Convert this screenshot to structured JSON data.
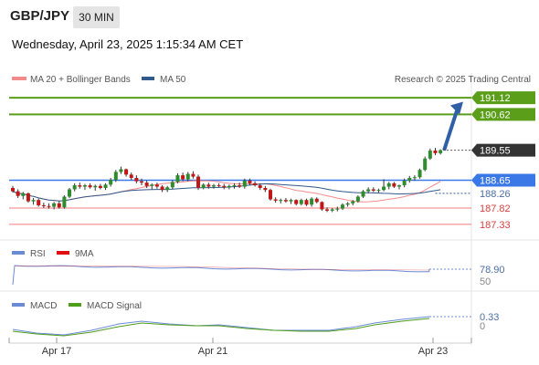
{
  "header": {
    "symbol": "GBP/JPY",
    "timeframe": "30 MIN",
    "datetime": "Wednesday, April 23, 2025 1:15:34 AM CET"
  },
  "legend": {
    "ma20_label": "MA 20 + Bollinger Bands",
    "ma50_label": "MA 50",
    "credit": "Research © 2025 Trading Central",
    "rsi_label": "RSI",
    "rsi_ma_label": "9MA",
    "macd_label": "MACD",
    "macd_signal_label": "MACD Signal"
  },
  "colors": {
    "green_level": "#5a9e1a",
    "blue_level": "#3b78e7",
    "red_level": "#f07b7b",
    "ma20": "#f48b8b",
    "ma50": "#2f5a8a",
    "arrow": "#2f5fa5",
    "current_price": "#333333",
    "rsi": "#6b8ad6",
    "rsi_ma": "#e01010",
    "macd": "#6b8ad6",
    "macd_signal": "#4f9e1a"
  },
  "chart_data": [
    {
      "type": "candlestick",
      "x_labels": [
        "Apr 17",
        "Apr 21",
        "Apr 23"
      ],
      "price_labels": [
        {
          "value": 191.12,
          "kind": "resistance",
          "text": "191.12"
        },
        {
          "value": 190.62,
          "kind": "resistance",
          "text": "190.62"
        },
        {
          "value": 189.55,
          "kind": "current",
          "text": "189.55"
        },
        {
          "value": 188.65,
          "kind": "pivot",
          "text": "188.65"
        },
        {
          "value": 188.26,
          "kind": "ma",
          "text": "188.26"
        },
        {
          "value": 187.82,
          "kind": "support",
          "text": "187.82"
        },
        {
          "value": 187.33,
          "kind": "support",
          "text": "187.33"
        }
      ],
      "ylim": [
        187.0,
        191.45
      ],
      "candles": [
        [
          188.42,
          188.48,
          188.28,
          188.32
        ],
        [
          188.32,
          188.38,
          188.12,
          188.18
        ],
        [
          188.18,
          188.3,
          188.08,
          188.26
        ],
        [
          188.26,
          188.28,
          187.98,
          188.02
        ],
        [
          188.02,
          188.12,
          187.92,
          188.06
        ],
        [
          188.06,
          188.1,
          187.86,
          187.9
        ],
        [
          187.9,
          187.98,
          187.82,
          187.88
        ],
        [
          187.88,
          187.96,
          187.8,
          187.86
        ],
        [
          187.86,
          188.0,
          187.78,
          187.96
        ],
        [
          187.96,
          188.02,
          187.8,
          187.84
        ],
        [
          187.84,
          188.2,
          187.8,
          188.16
        ],
        [
          188.16,
          188.42,
          188.12,
          188.38
        ],
        [
          188.38,
          188.56,
          188.32,
          188.5
        ],
        [
          188.5,
          188.58,
          188.4,
          188.46
        ],
        [
          188.46,
          188.54,
          188.36,
          188.5
        ],
        [
          188.5,
          188.56,
          188.4,
          188.44
        ],
        [
          188.44,
          188.52,
          188.34,
          188.48
        ],
        [
          188.48,
          188.54,
          188.38,
          188.42
        ],
        [
          188.42,
          188.56,
          188.36,
          188.52
        ],
        [
          188.52,
          188.72,
          188.46,
          188.66
        ],
        [
          188.66,
          188.96,
          188.6,
          188.9
        ],
        [
          188.9,
          189.06,
          188.84,
          188.98
        ],
        [
          188.98,
          189.0,
          188.76,
          188.82
        ],
        [
          188.82,
          188.88,
          188.66,
          188.72
        ],
        [
          188.72,
          188.8,
          188.56,
          188.62
        ],
        [
          188.62,
          188.7,
          188.5,
          188.58
        ],
        [
          188.58,
          188.64,
          188.42,
          188.48
        ],
        [
          188.48,
          188.56,
          188.38,
          188.52
        ],
        [
          188.52,
          188.58,
          188.4,
          188.46
        ],
        [
          188.46,
          188.5,
          188.3,
          188.36
        ],
        [
          188.36,
          188.48,
          188.3,
          188.44
        ],
        [
          188.44,
          188.66,
          188.38,
          188.6
        ],
        [
          188.6,
          188.86,
          188.56,
          188.8
        ],
        [
          188.8,
          188.88,
          188.62,
          188.68
        ],
        [
          188.68,
          188.9,
          188.62,
          188.84
        ],
        [
          188.84,
          188.92,
          188.7,
          188.76
        ],
        [
          188.76,
          188.82,
          188.36,
          188.42
        ],
        [
          188.42,
          188.56,
          188.38,
          188.52
        ],
        [
          188.52,
          188.58,
          188.4,
          188.46
        ],
        [
          188.46,
          188.54,
          188.4,
          188.5
        ],
        [
          188.5,
          188.56,
          188.44,
          188.48
        ],
        [
          188.48,
          188.54,
          188.38,
          188.44
        ],
        [
          188.44,
          188.52,
          188.38,
          188.48
        ],
        [
          188.48,
          188.56,
          188.4,
          188.5
        ],
        [
          188.5,
          188.58,
          188.42,
          188.46
        ],
        [
          188.46,
          188.7,
          188.4,
          188.64
        ],
        [
          188.64,
          188.7,
          188.5,
          188.56
        ],
        [
          188.56,
          188.62,
          188.46,
          188.5
        ],
        [
          188.5,
          188.56,
          188.36,
          188.42
        ],
        [
          188.42,
          188.48,
          188.3,
          188.36
        ],
        [
          188.36,
          188.4,
          188.04,
          188.08
        ],
        [
          188.08,
          188.14,
          187.98,
          188.04
        ],
        [
          188.04,
          188.1,
          187.96,
          188.06
        ],
        [
          188.06,
          188.12,
          187.98,
          188.02
        ],
        [
          188.02,
          188.1,
          187.94,
          188.06
        ],
        [
          188.06,
          188.08,
          187.9,
          187.94
        ],
        [
          187.94,
          188.1,
          187.9,
          188.06
        ],
        [
          188.06,
          188.1,
          187.88,
          187.92
        ],
        [
          187.92,
          188.14,
          187.86,
          188.1
        ],
        [
          188.1,
          188.14,
          187.96,
          188.0
        ],
        [
          188.0,
          188.02,
          187.74,
          187.78
        ],
        [
          187.78,
          187.84,
          187.7,
          187.74
        ],
        [
          187.74,
          187.82,
          187.7,
          187.78
        ],
        [
          187.78,
          187.86,
          187.72,
          187.8
        ],
        [
          187.8,
          187.96,
          187.76,
          187.92
        ],
        [
          187.92,
          188.0,
          187.86,
          187.96
        ],
        [
          187.96,
          188.06,
          187.9,
          188.02
        ],
        [
          188.02,
          188.2,
          187.98,
          188.16
        ],
        [
          188.16,
          188.36,
          188.12,
          188.32
        ],
        [
          188.32,
          188.44,
          188.26,
          188.38
        ],
        [
          188.38,
          188.44,
          188.3,
          188.34
        ],
        [
          188.34,
          188.4,
          188.28,
          188.36
        ],
        [
          188.36,
          188.68,
          188.32,
          188.46
        ],
        [
          188.46,
          188.6,
          188.38,
          188.56
        ],
        [
          188.56,
          188.6,
          188.42,
          188.46
        ],
        [
          188.46,
          188.52,
          188.38,
          188.5
        ],
        [
          188.5,
          188.7,
          188.44,
          188.64
        ],
        [
          188.64,
          188.78,
          188.58,
          188.72
        ],
        [
          188.72,
          188.8,
          188.64,
          188.74
        ],
        [
          188.74,
          189.0,
          188.7,
          188.96
        ],
        [
          188.96,
          189.36,
          188.92,
          189.3
        ],
        [
          189.3,
          189.6,
          189.26,
          189.54
        ],
        [
          189.54,
          189.62,
          189.4,
          189.46
        ],
        [
          189.46,
          189.58,
          189.42,
          189.55
        ]
      ]
    },
    {
      "type": "line",
      "title": "RSI",
      "value_label": "78.90",
      "value_label_2": "50"
    },
    {
      "type": "line",
      "title": "MACD",
      "value_label": "0.33",
      "value_label_2": "0"
    }
  ]
}
